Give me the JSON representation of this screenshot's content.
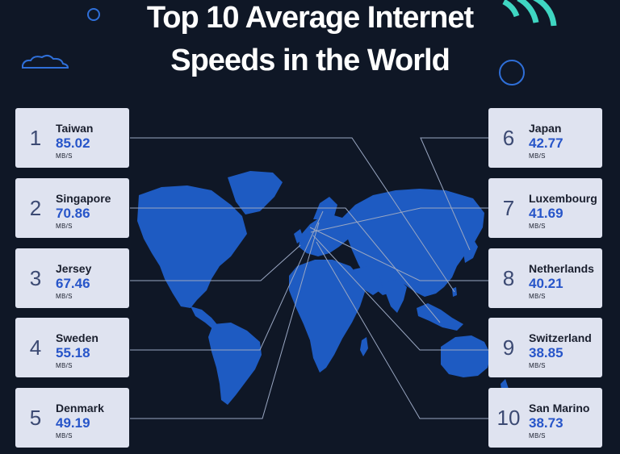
{
  "title_line1": "Top 10 Average Internet",
  "title_line2": "Speeds in the World",
  "colors": {
    "background": "#0f1726",
    "map": "#1e5bc2",
    "card": "#dfe3f0",
    "value": "#2755c9",
    "accent": "#3fd6c2"
  },
  "chart_data": {
    "type": "table",
    "title": "Top 10 Average Internet Speeds in the World",
    "unit": "MB/S",
    "entries": [
      {
        "rank": "1",
        "country": "Taiwan",
        "speed": "85.02",
        "unit": "MB/S"
      },
      {
        "rank": "2",
        "country": "Singapore",
        "speed": "70.86",
        "unit": "MB/S"
      },
      {
        "rank": "3",
        "country": "Jersey",
        "speed": "67.46",
        "unit": "MB/S"
      },
      {
        "rank": "4",
        "country": "Sweden",
        "speed": "55.18",
        "unit": "MB/S"
      },
      {
        "rank": "5",
        "country": "Denmark",
        "speed": "49.19",
        "unit": "MB/S"
      },
      {
        "rank": "6",
        "country": "Japan",
        "speed": "42.77",
        "unit": "MB/S"
      },
      {
        "rank": "7",
        "country": "Luxembourg",
        "speed": "41.69",
        "unit": "MB/S"
      },
      {
        "rank": "8",
        "country": "Netherlands",
        "speed": "40.21",
        "unit": "MB/S"
      },
      {
        "rank": "9",
        "country": "Switzerland",
        "speed": "38.85",
        "unit": "MB/S"
      },
      {
        "rank": "10",
        "country": "San Marino",
        "speed": "38.73",
        "unit": "MB/S"
      }
    ]
  }
}
